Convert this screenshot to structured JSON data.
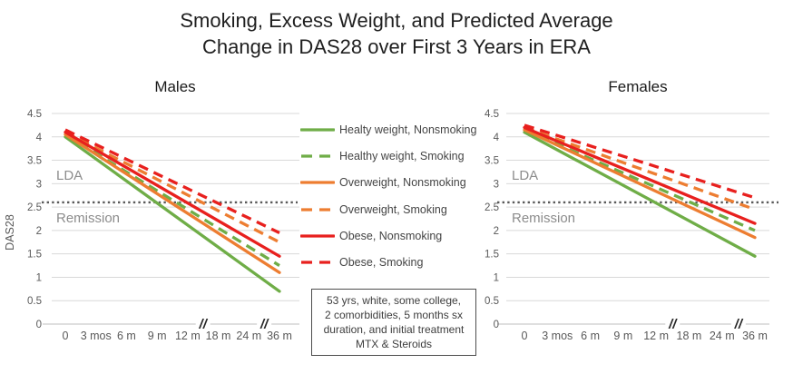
{
  "header": {
    "title_line1": "Smoking, Excess Weight, and Predicted Average",
    "title_line2": "Change in DAS28 over First 3 Years in ERA"
  },
  "colors": {
    "healthy_green": "#6FAD47",
    "overweight_orange": "#ED7D31",
    "obese_red": "#E8201E",
    "gridline": "#D9D9D9",
    "axis_line": "#BFBFBF",
    "axis_text": "#595959",
    "reference_dotted": "#595959",
    "zone_label_text": "#8C8C8C"
  },
  "legend": {
    "items": [
      {
        "label": "Healty weight, Nonsmoking",
        "color": "#6FAD47",
        "dash": false
      },
      {
        "label": "Healthy weight, Smoking",
        "color": "#6FAD47",
        "dash": true
      },
      {
        "label": "Overweight, Nonsmoking",
        "color": "#ED7D31",
        "dash": false
      },
      {
        "label": "Overweight, Smoking",
        "color": "#ED7D31",
        "dash": true
      },
      {
        "label": "Obese, Nonsmoking",
        "color": "#E8201E",
        "dash": false
      },
      {
        "label": "Obese, Smoking",
        "color": "#E8201E",
        "dash": true
      }
    ]
  },
  "annotation": {
    "lines": [
      "53 yrs, white, some college,",
      "2 comorbidities, 5 months sx",
      "duration, and initial treatment",
      "MTX & Steroids"
    ]
  },
  "chart_data": [
    {
      "type": "line",
      "title": "Males",
      "ylabel": "DAS28",
      "categories": [
        "0",
        "3 mos",
        "6 m",
        "9 m",
        "12 m",
        "18 m",
        "24 m",
        "36 m"
      ],
      "months": [
        0,
        3,
        6,
        9,
        12,
        18,
        24,
        36
      ],
      "ylim": [
        0,
        4.5
      ],
      "ytick_labels": [
        "0",
        "0.5",
        "1",
        "1.5",
        "2",
        "2.5",
        "3",
        "3.5",
        "4",
        "4.5"
      ],
      "grid": true,
      "axis_break_after": [
        "12 m",
        "24 m"
      ],
      "reference_line": {
        "value": 2.6,
        "above_label": "LDA",
        "below_label": "Remission"
      },
      "series": [
        {
          "name": "Healty weight, Nonsmoking",
          "color": "#6FAD47",
          "dash": false,
          "start": 4.0,
          "end": 0.7
        },
        {
          "name": "Healthy weight, Smoking",
          "color": "#6FAD47",
          "dash": true,
          "start": 4.05,
          "end": 1.25
        },
        {
          "name": "Overweight, Nonsmoking",
          "color": "#ED7D31",
          "dash": false,
          "start": 4.05,
          "end": 1.1
        },
        {
          "name": "Overweight, Smoking",
          "color": "#ED7D31",
          "dash": true,
          "start": 4.1,
          "end": 1.75
        },
        {
          "name": "Obese, Nonsmoking",
          "color": "#E8201E",
          "dash": false,
          "start": 4.1,
          "end": 1.45
        },
        {
          "name": "Obese, Smoking",
          "color": "#E8201E",
          "dash": true,
          "start": 4.15,
          "end": 1.95
        }
      ]
    },
    {
      "type": "line",
      "title": "Females",
      "ylabel": "",
      "categories": [
        "0",
        "3 mos",
        "6 m",
        "9 m",
        "12 m",
        "18 m",
        "24 m",
        "36 m"
      ],
      "months": [
        0,
        3,
        6,
        9,
        12,
        18,
        24,
        36
      ],
      "ylim": [
        0,
        4.5
      ],
      "ytick_labels": [
        "0",
        "0.5",
        "1",
        "1.5",
        "2",
        "2.5",
        "3",
        "3.5",
        "4",
        "4.5"
      ],
      "grid": true,
      "axis_break_after": [
        "12 m",
        "24 m"
      ],
      "reference_line": {
        "value": 2.6,
        "above_label": "LDA",
        "below_label": "Remission"
      },
      "series": [
        {
          "name": "Healty weight, Nonsmoking",
          "color": "#6FAD47",
          "dash": false,
          "start": 4.1,
          "end": 1.45
        },
        {
          "name": "Healthy weight, Smoking",
          "color": "#6FAD47",
          "dash": true,
          "start": 4.15,
          "end": 2.0
        },
        {
          "name": "Overweight, Nonsmoking",
          "color": "#ED7D31",
          "dash": false,
          "start": 4.15,
          "end": 1.85
        },
        {
          "name": "Overweight, Smoking",
          "color": "#ED7D31",
          "dash": true,
          "start": 4.2,
          "end": 2.45
        },
        {
          "name": "Obese, Nonsmoking",
          "color": "#E8201E",
          "dash": false,
          "start": 4.2,
          "end": 2.15
        },
        {
          "name": "Obese, Smoking",
          "color": "#E8201E",
          "dash": true,
          "start": 4.25,
          "end": 2.7
        }
      ]
    }
  ]
}
